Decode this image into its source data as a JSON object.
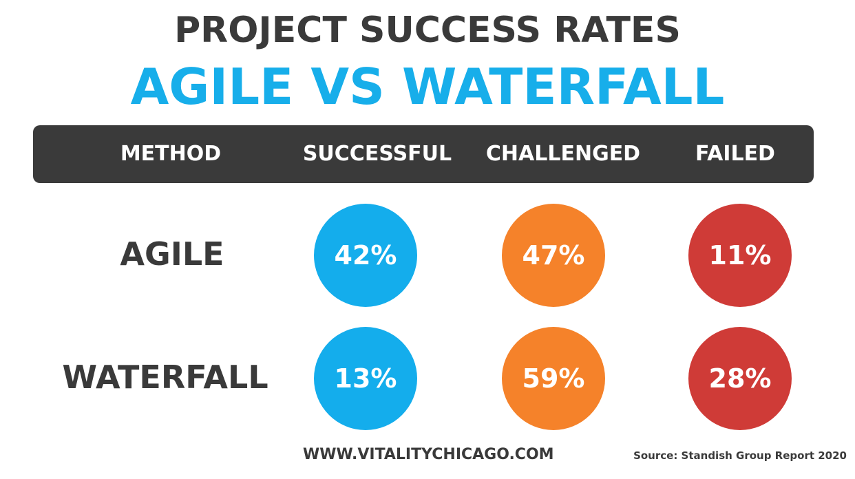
{
  "title": {
    "line1": "PROJECT SUCCESS RATES",
    "line2": "AGILE VS WATERFALL",
    "line2_color": "#17aeea"
  },
  "header": {
    "columns": [
      "METHOD",
      "SUCCESSFUL",
      "CHALLENGED",
      "FAILED"
    ],
    "bar_color": "#3a3a3a"
  },
  "rows": [
    {
      "method": "AGILE",
      "successful": "42%",
      "challenged": "47%",
      "failed": "11%"
    },
    {
      "method": "WATERFALL",
      "successful": "13%",
      "challenged": "59%",
      "failed": "28%"
    }
  ],
  "colors": {
    "successful": "#14adec",
    "challenged": "#f5822a",
    "failed": "#cf3b37"
  },
  "footer": {
    "url": "WWW.VITALITYCHICAGO.COM",
    "source": "Source: Standish Group Report 2020"
  }
}
